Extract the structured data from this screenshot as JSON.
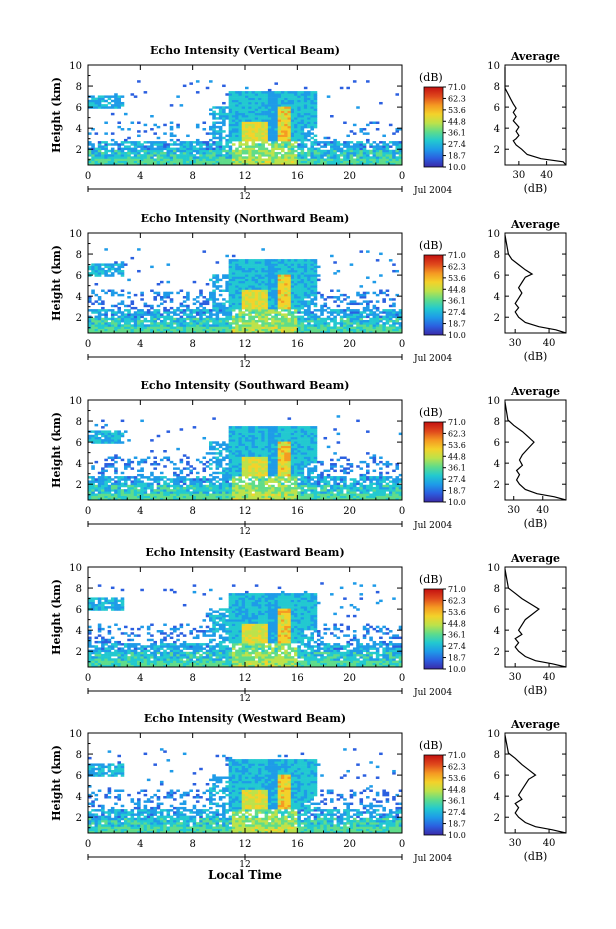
{
  "date_label": "Jul 2004",
  "xlabel": "Local Time",
  "average_title": "Average",
  "unit_label": "(dB)",
  "colorbar_ticks": [
    "71.0",
    "62.3",
    "53.6",
    "44.8",
    "36.1",
    "27.4",
    "18.7",
    "10.0"
  ],
  "colors": {
    "scale": [
      "#3a2aa8",
      "#2b5fe0",
      "#1e9be8",
      "#22c9d0",
      "#5fdc8a",
      "#bde24a",
      "#f3d22a",
      "#f59a22",
      "#e04a1c",
      "#c41010"
    ]
  },
  "chart_data": [
    {
      "type": "heatmap",
      "title": "Echo Intensity (Vertical Beam)",
      "ylabel": "Height (km)",
      "xlim": [
        0,
        24
      ],
      "ylim": [
        0.5,
        10
      ],
      "x_ticks": [
        "0",
        "4",
        "8",
        "12",
        "16",
        "20",
        "0"
      ],
      "y_ticks": [
        "2",
        "4",
        "6",
        "8",
        "10"
      ],
      "bracket_label": "12",
      "colorbar_range": [
        10.0,
        71.0
      ],
      "profile": {
        "xlim": [
          25,
          47
        ],
        "x_ticks": [
          "30",
          "40"
        ],
        "points": [
          [
            47,
            0.5
          ],
          [
            46,
            0.8
          ],
          [
            38,
            1.1
          ],
          [
            33,
            1.5
          ],
          [
            31,
            2.0
          ],
          [
            29,
            2.4
          ],
          [
            28,
            2.8
          ],
          [
            29,
            3.0
          ],
          [
            30,
            3.3
          ],
          [
            29,
            3.7
          ],
          [
            30,
            4.1
          ],
          [
            29,
            4.4
          ],
          [
            28,
            4.7
          ],
          [
            29,
            5.1
          ],
          [
            28,
            5.5
          ],
          [
            29,
            5.9
          ],
          [
            28,
            6.3
          ],
          [
            27,
            6.8
          ],
          [
            26,
            7.3
          ],
          [
            25,
            7.8
          ],
          [
            25,
            9.8
          ]
        ]
      }
    },
    {
      "type": "heatmap",
      "title": "Echo Intensity (Northward Beam)",
      "ylabel": "Height (km)",
      "xlim": [
        0,
        24
      ],
      "ylim": [
        0.5,
        10
      ],
      "x_ticks": [
        "0",
        "4",
        "8",
        "12",
        "16",
        "20",
        "0"
      ],
      "y_ticks": [
        "2",
        "4",
        "6",
        "8",
        "10"
      ],
      "bracket_label": "12",
      "colorbar_range": [
        10.0,
        71.0
      ],
      "profile": {
        "xlim": [
          27,
          45
        ],
        "x_ticks": [
          "30",
          "40"
        ],
        "points": [
          [
            45,
            0.5
          ],
          [
            42,
            0.8
          ],
          [
            37,
            1.1
          ],
          [
            33,
            1.5
          ],
          [
            31,
            2.0
          ],
          [
            30,
            2.5
          ],
          [
            31,
            2.9
          ],
          [
            30,
            3.3
          ],
          [
            31,
            3.8
          ],
          [
            32,
            4.3
          ],
          [
            31,
            4.8
          ],
          [
            32,
            5.3
          ],
          [
            33,
            5.8
          ],
          [
            35,
            6.1
          ],
          [
            33,
            6.5
          ],
          [
            31,
            7.0
          ],
          [
            29,
            7.5
          ],
          [
            28,
            8.0
          ],
          [
            27,
            9.8
          ]
        ]
      }
    },
    {
      "type": "heatmap",
      "title": "Echo Intensity (Southward Beam)",
      "ylabel": "Height (km)",
      "xlim": [
        0,
        24
      ],
      "ylim": [
        0.5,
        10
      ],
      "x_ticks": [
        "0",
        "4",
        "8",
        "12",
        "16",
        "20",
        "0"
      ],
      "y_ticks": [
        "2",
        "4",
        "6",
        "8",
        "10"
      ],
      "bracket_label": "12",
      "colorbar_range": [
        10.0,
        71.0
      ],
      "profile": {
        "xlim": [
          27,
          48
        ],
        "x_ticks": [
          "30",
          "40"
        ],
        "points": [
          [
            48,
            0.5
          ],
          [
            44,
            0.8
          ],
          [
            38,
            1.1
          ],
          [
            34,
            1.5
          ],
          [
            32,
            2.0
          ],
          [
            31,
            2.4
          ],
          [
            32,
            2.9
          ],
          [
            31,
            3.3
          ],
          [
            33,
            3.8
          ],
          [
            32,
            4.3
          ],
          [
            33,
            4.8
          ],
          [
            35,
            5.4
          ],
          [
            37,
            6.0
          ],
          [
            35,
            6.5
          ],
          [
            33,
            7.0
          ],
          [
            30,
            7.6
          ],
          [
            28,
            8.1
          ],
          [
            27,
            9.8
          ]
        ]
      }
    },
    {
      "type": "heatmap",
      "title": "Echo Intensity (Eastward Beam)",
      "ylabel": "Height (km)",
      "xlim": [
        0,
        24
      ],
      "ylim": [
        0.5,
        10
      ],
      "x_ticks": [
        "0",
        "4",
        "8",
        "12",
        "16",
        "20",
        "0"
      ],
      "y_ticks": [
        "2",
        "4",
        "6",
        "8",
        "10"
      ],
      "bracket_label": "12",
      "colorbar_range": [
        10.0,
        71.0
      ],
      "profile": {
        "xlim": [
          27,
          45
        ],
        "x_ticks": [
          "30",
          "40"
        ],
        "points": [
          [
            45,
            0.5
          ],
          [
            41,
            0.8
          ],
          [
            36,
            1.1
          ],
          [
            33,
            1.5
          ],
          [
            31,
            2.0
          ],
          [
            30,
            2.4
          ],
          [
            31,
            2.8
          ],
          [
            30,
            3.2
          ],
          [
            32,
            3.6
          ],
          [
            31,
            4.0
          ],
          [
            32,
            4.5
          ],
          [
            33,
            5.0
          ],
          [
            35,
            5.5
          ],
          [
            37,
            6.0
          ],
          [
            35,
            6.4
          ],
          [
            32,
            7.0
          ],
          [
            30,
            7.5
          ],
          [
            28,
            8.0
          ],
          [
            27,
            9.8
          ]
        ]
      }
    },
    {
      "type": "heatmap",
      "title": "Echo Intensity (Westward Beam)",
      "ylabel": "Height (km)",
      "xlim": [
        0,
        24
      ],
      "ylim": [
        0.5,
        10
      ],
      "x_ticks": [
        "0",
        "4",
        "8",
        "12",
        "16",
        "20",
        "0"
      ],
      "y_ticks": [
        "2",
        "4",
        "6",
        "8",
        "10"
      ],
      "bracket_label": "12",
      "colorbar_range": [
        10.0,
        71.0
      ],
      "profile": {
        "xlim": [
          27,
          45
        ],
        "x_ticks": [
          "30",
          "40"
        ],
        "points": [
          [
            45,
            0.5
          ],
          [
            41,
            0.8
          ],
          [
            36,
            1.1
          ],
          [
            33,
            1.5
          ],
          [
            31,
            2.0
          ],
          [
            30,
            2.4
          ],
          [
            31,
            2.9
          ],
          [
            30,
            3.3
          ],
          [
            32,
            3.7
          ],
          [
            31,
            4.1
          ],
          [
            32,
            4.6
          ],
          [
            33,
            5.1
          ],
          [
            34,
            5.6
          ],
          [
            36,
            6.0
          ],
          [
            34,
            6.5
          ],
          [
            32,
            7.0
          ],
          [
            30,
            7.6
          ],
          [
            28,
            8.1
          ],
          [
            27,
            9.8
          ]
        ]
      }
    }
  ]
}
